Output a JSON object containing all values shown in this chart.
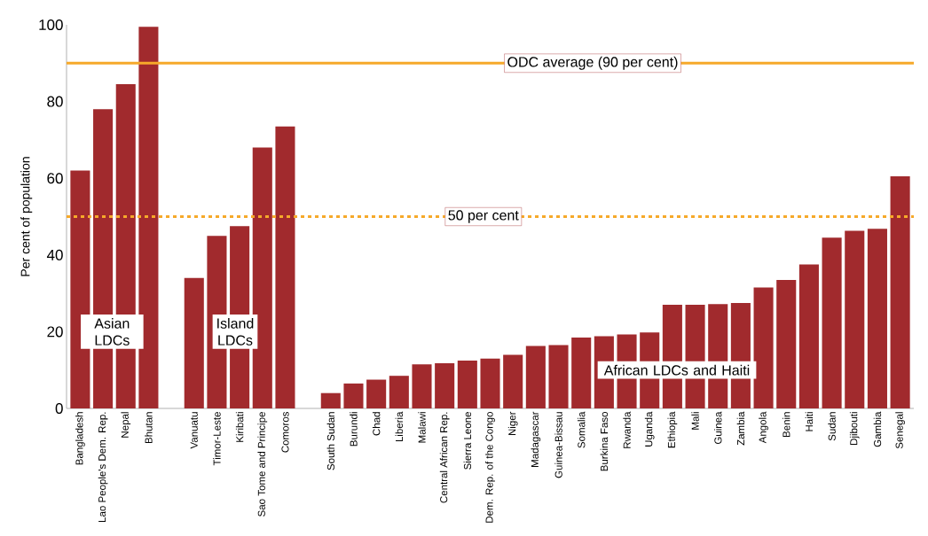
{
  "chart_data": {
    "type": "bar",
    "ylabel": "Per cent of population",
    "categories": [
      "Bangladesh",
      "Lao People's Dem. Rep.",
      "Nepal",
      "Bhutan",
      null,
      "Vanuatu",
      "Timor-Leste",
      "Kiribati",
      "Sao Tome and Principe",
      "Comoros",
      null,
      "South Sudan",
      "Burundi",
      "Chad",
      "Liberia",
      "Malawi",
      "Central African Rep.",
      "Sierra Leone",
      "Dem. Rep. of the Congo",
      "Niger",
      "Madagascar",
      "Guinea-Bissau",
      "Somalia",
      "Burkina Faso",
      "Rwanda",
      "Uganda",
      "Ethiopia",
      "Mali",
      "Guinea",
      "Zambia",
      "Angola",
      "Benin",
      "Haiti",
      "Sudan",
      "Djibouti",
      "Gambia",
      "Senegal"
    ],
    "values": [
      62,
      78,
      84.5,
      99.5,
      null,
      34,
      45,
      47.5,
      68,
      73.5,
      null,
      4,
      6.5,
      7.5,
      8.5,
      11.5,
      11.8,
      12.5,
      13,
      14,
      16.3,
      16.5,
      18.5,
      18.8,
      19.3,
      19.8,
      27,
      27,
      27.2,
      27.5,
      31.5,
      33.5,
      37.5,
      44.5,
      46.3,
      46.8,
      60.5
    ],
    "color": "#a12a2d",
    "ylim": [
      0,
      100
    ],
    "yticks": [
      0,
      20,
      40,
      60,
      80,
      100
    ],
    "ref_lines": [
      {
        "axis": "y",
        "value": 90,
        "label": "ODC average (90 per cent)",
        "color": "#f6a92a",
        "line_style": "solid"
      },
      {
        "axis": "y",
        "value": 50,
        "label": "50 per cent",
        "color": "#f6a92a",
        "line_style": "dashed"
      }
    ],
    "annotations": [
      "Asian LDCs",
      "Island LDCs",
      "African LDCs and Haiti"
    ]
  }
}
